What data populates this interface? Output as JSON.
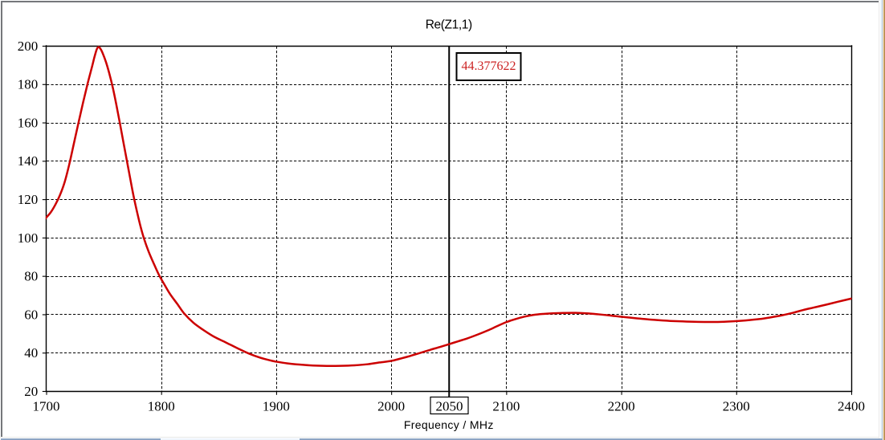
{
  "window": {
    "background": "#ffffff",
    "border_color": "#75777b",
    "right_edge_colors": {
      "highlight": "#eef8fe",
      "border": "#a9bacf",
      "backdrop_tan": "#c29a5e"
    },
    "bottom_tab_strip": {
      "bar_color": "#8fa6c4",
      "active_tab_color": "#eff5fc"
    }
  },
  "chart_data": {
    "type": "line",
    "title": "Re(Z1,1)",
    "xlabel": "Frequency / MHz",
    "ylabel": "",
    "xlim": [
      1700,
      2400
    ],
    "ylim": [
      20,
      200
    ],
    "x_ticks": [
      1700,
      1800,
      1900,
      2000,
      2100,
      2200,
      2300,
      2400
    ],
    "x_gridlines": [
      1800,
      1900,
      2000,
      2100,
      2200,
      2300
    ],
    "y_ticks": [
      20,
      40,
      60,
      80,
      100,
      120,
      140,
      160,
      180,
      200
    ],
    "y_gridlines": [
      40,
      60,
      80,
      100,
      120,
      140,
      160,
      180
    ],
    "grid_style": "dashed",
    "legend": null,
    "marker": {
      "x": 2050,
      "x_label": "2050",
      "value_label": "44.377622",
      "value_color": "#cc2222",
      "line_color": "#000000"
    },
    "series": [
      {
        "name": "Re(Z1,1)",
        "color": "#cc0000",
        "points": [
          [
            1696,
            107.7
          ],
          [
            1700,
            110.4
          ],
          [
            1704,
            113.2
          ],
          [
            1708,
            117.2
          ],
          [
            1712,
            122.2
          ],
          [
            1716,
            128.8
          ],
          [
            1720,
            138.0
          ],
          [
            1724,
            148.8
          ],
          [
            1728,
            159.6
          ],
          [
            1732,
            170.2
          ],
          [
            1736,
            180.2
          ],
          [
            1740,
            189.4
          ],
          [
            1742,
            194.2
          ],
          [
            1744,
            198.2
          ],
          [
            1745.5,
            199.35
          ],
          [
            1747,
            198.6
          ],
          [
            1749,
            196.3
          ],
          [
            1752,
            191.5
          ],
          [
            1755,
            185.3
          ],
          [
            1758,
            178.0
          ],
          [
            1761,
            169.3
          ],
          [
            1764,
            159.9
          ],
          [
            1767,
            150.2
          ],
          [
            1770,
            140.6
          ],
          [
            1773,
            131.0
          ],
          [
            1776,
            121.6
          ],
          [
            1779,
            113.4
          ],
          [
            1782,
            105.9
          ],
          [
            1785,
            99.6
          ],
          [
            1789,
            92.8
          ],
          [
            1793,
            87.2
          ],
          [
            1798,
            80.6
          ],
          [
            1803,
            75.3
          ],
          [
            1808,
            70.3
          ],
          [
            1814,
            65.4
          ],
          [
            1820,
            60.4
          ],
          [
            1828,
            55.6
          ],
          [
            1836,
            52.1
          ],
          [
            1846,
            48.3
          ],
          [
            1856,
            45.4
          ],
          [
            1866,
            42.4
          ],
          [
            1876,
            39.6
          ],
          [
            1886,
            37.4
          ],
          [
            1896,
            35.8
          ],
          [
            1900,
            35.3
          ],
          [
            1910,
            34.4
          ],
          [
            1920,
            33.8
          ],
          [
            1932,
            33.3
          ],
          [
            1944,
            33.1
          ],
          [
            1956,
            33.15
          ],
          [
            1968,
            33.4
          ],
          [
            1980,
            34.0
          ],
          [
            1990,
            34.9
          ],
          [
            2000,
            35.7
          ],
          [
            2008,
            36.9
          ],
          [
            2016,
            38.2
          ],
          [
            2026,
            40.0
          ],
          [
            2034,
            41.5
          ],
          [
            2042,
            42.9
          ],
          [
            2050,
            44.377622
          ],
          [
            2058,
            45.9
          ],
          [
            2066,
            47.4
          ],
          [
            2075,
            49.4
          ],
          [
            2084,
            51.6
          ],
          [
            2092,
            53.8
          ],
          [
            2100,
            55.9
          ],
          [
            2108,
            57.5
          ],
          [
            2116,
            58.8
          ],
          [
            2124,
            59.7
          ],
          [
            2132,
            60.2
          ],
          [
            2140,
            60.5
          ],
          [
            2150,
            60.7
          ],
          [
            2160,
            60.75
          ],
          [
            2170,
            60.5
          ],
          [
            2180,
            60.0
          ],
          [
            2190,
            59.4
          ],
          [
            2200,
            58.7
          ],
          [
            2212,
            58.0
          ],
          [
            2224,
            57.3
          ],
          [
            2236,
            56.8
          ],
          [
            2248,
            56.4
          ],
          [
            2260,
            56.15
          ],
          [
            2272,
            56.0
          ],
          [
            2284,
            56.0
          ],
          [
            2296,
            56.3
          ],
          [
            2308,
            56.8
          ],
          [
            2320,
            57.5
          ],
          [
            2330,
            58.4
          ],
          [
            2340,
            59.5
          ],
          [
            2350,
            60.9
          ],
          [
            2358,
            62.2
          ],
          [
            2368,
            63.6
          ],
          [
            2378,
            65.0
          ],
          [
            2388,
            66.5
          ],
          [
            2400,
            68.2
          ]
        ]
      }
    ]
  }
}
